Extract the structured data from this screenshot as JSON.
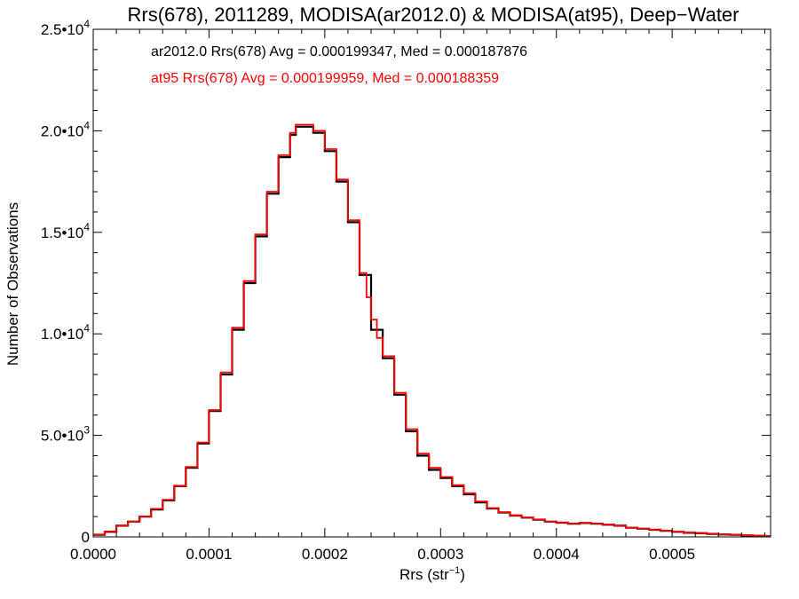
{
  "chart_data": {
    "type": "line",
    "title": "Rrs(678), 2011289, MODISA(ar2012.0) & MODISA(at95), Deep−Water",
    "xlabel": "Rrs (str",
    "xlabel_sup": "−1",
    "xlabel_end": ")",
    "ylabel": "Number of Observations",
    "xlim": [
      0.0,
      0.000585
    ],
    "ylim": [
      0,
      25000
    ],
    "x_ticks": [
      {
        "value": 0.0,
        "label": "0.0000"
      },
      {
        "value": 0.0001,
        "label": "0.0001"
      },
      {
        "value": 0.0002,
        "label": "0.0002"
      },
      {
        "value": 0.0003,
        "label": "0.0003"
      },
      {
        "value": 0.0004,
        "label": "0.0004"
      },
      {
        "value": 0.0005,
        "label": "0.0005"
      }
    ],
    "y_ticks": [
      {
        "value": 0,
        "mant": "0",
        "exp": ""
      },
      {
        "value": 5000,
        "mant": "5.0•10",
        "exp": "3"
      },
      {
        "value": 10000,
        "mant": "1.0•10",
        "exp": "4"
      },
      {
        "value": 15000,
        "mant": "1.5•10",
        "exp": "4"
      },
      {
        "value": 20000,
        "mant": "2.0•10",
        "exp": "4"
      },
      {
        "value": 25000,
        "mant": "2.5•10",
        "exp": "4"
      }
    ],
    "grid": false,
    "annotations": [
      {
        "text": "ar2012.0 Rrs(678) Avg = 0.000199347, Med = 0.000187876",
        "color": "#000000"
      },
      {
        "text": "at95 Rrs(678) Avg = 0.000199959, Med = 0.000188359",
        "color": "#ff0000"
      }
    ],
    "series": [
      {
        "color": "#000000",
        "points": [
          [
            0.0,
            100
          ],
          [
            1e-05,
            250
          ],
          [
            2e-05,
            550
          ],
          [
            3e-05,
            750
          ],
          [
            4e-05,
            1000
          ],
          [
            5e-05,
            1350
          ],
          [
            6e-05,
            1800
          ],
          [
            7e-05,
            2500
          ],
          [
            8e-05,
            3400
          ],
          [
            9e-05,
            4600
          ],
          [
            0.0001,
            6200
          ],
          [
            0.00011,
            8000
          ],
          [
            0.00012,
            10200
          ],
          [
            0.00013,
            12500
          ],
          [
            0.00014,
            14800
          ],
          [
            0.00015,
            16900
          ],
          [
            0.00016,
            18700
          ],
          [
            0.00017,
            19800
          ],
          [
            0.000175,
            20200
          ],
          [
            0.00018,
            20200
          ],
          [
            0.00019,
            19900
          ],
          [
            0.0002,
            19000
          ],
          [
            0.00021,
            17500
          ],
          [
            0.00022,
            15500
          ],
          [
            0.00023,
            12900
          ],
          [
            0.00024,
            10200
          ],
          [
            0.00025,
            8800
          ],
          [
            0.00026,
            7000
          ],
          [
            0.00027,
            5200
          ],
          [
            0.00028,
            4000
          ],
          [
            0.00029,
            3300
          ],
          [
            0.0003,
            2900
          ],
          [
            0.00031,
            2500
          ],
          [
            0.00032,
            2100
          ],
          [
            0.00033,
            1700
          ],
          [
            0.00034,
            1400
          ],
          [
            0.00035,
            1200
          ],
          [
            0.00036,
            1050
          ],
          [
            0.00037,
            950
          ],
          [
            0.00038,
            850
          ],
          [
            0.00039,
            750
          ],
          [
            0.0004,
            700
          ],
          [
            0.00041,
            650
          ],
          [
            0.00042,
            680
          ],
          [
            0.00043,
            650
          ],
          [
            0.00044,
            600
          ],
          [
            0.00045,
            550
          ],
          [
            0.00046,
            450
          ],
          [
            0.00047,
            400
          ],
          [
            0.00048,
            350
          ],
          [
            0.00049,
            300
          ],
          [
            0.0005,
            250
          ],
          [
            0.00051,
            200
          ],
          [
            0.00052,
            180
          ],
          [
            0.00053,
            150
          ],
          [
            0.00054,
            120
          ],
          [
            0.00055,
            100
          ],
          [
            0.00056,
            70
          ],
          [
            0.00057,
            50
          ],
          [
            0.00058,
            40
          ]
        ]
      },
      {
        "color": "#ff0000",
        "points": [
          [
            0.0,
            120
          ],
          [
            1e-05,
            270
          ],
          [
            2e-05,
            560
          ],
          [
            3e-05,
            760
          ],
          [
            4e-05,
            1010
          ],
          [
            5e-05,
            1380
          ],
          [
            6e-05,
            1830
          ],
          [
            7e-05,
            2520
          ],
          [
            8e-05,
            3450
          ],
          [
            9e-05,
            4650
          ],
          [
            0.0001,
            6250
          ],
          [
            0.00011,
            8100
          ],
          [
            0.00012,
            10300
          ],
          [
            0.00013,
            12600
          ],
          [
            0.00014,
            14900
          ],
          [
            0.00015,
            17000
          ],
          [
            0.00016,
            18800
          ],
          [
            0.00017,
            19900
          ],
          [
            0.000175,
            20300
          ],
          [
            0.00018,
            20300
          ],
          [
            0.00019,
            20000
          ],
          [
            0.0002,
            19100
          ],
          [
            0.00021,
            17600
          ],
          [
            0.00022,
            15600
          ],
          [
            0.00023,
            13000
          ],
          [
            0.000236,
            11800
          ],
          [
            0.00024,
            10700
          ],
          [
            0.000245,
            9800
          ],
          [
            0.00025,
            8900
          ],
          [
            0.00026,
            7100
          ],
          [
            0.00027,
            5300
          ],
          [
            0.00028,
            4100
          ],
          [
            0.00029,
            3400
          ],
          [
            0.0003,
            2950
          ],
          [
            0.00031,
            2550
          ],
          [
            0.00032,
            2150
          ],
          [
            0.00033,
            1750
          ],
          [
            0.00034,
            1420
          ],
          [
            0.00035,
            1220
          ],
          [
            0.00036,
            1060
          ],
          [
            0.00037,
            960
          ],
          [
            0.00038,
            860
          ],
          [
            0.00039,
            760
          ],
          [
            0.0004,
            710
          ],
          [
            0.00041,
            660
          ],
          [
            0.00042,
            690
          ],
          [
            0.00043,
            660
          ],
          [
            0.00044,
            610
          ],
          [
            0.00045,
            560
          ],
          [
            0.00046,
            460
          ],
          [
            0.00047,
            410
          ],
          [
            0.00048,
            360
          ],
          [
            0.00049,
            310
          ],
          [
            0.0005,
            260
          ],
          [
            0.00051,
            210
          ],
          [
            0.00052,
            190
          ],
          [
            0.00053,
            160
          ],
          [
            0.00054,
            130
          ],
          [
            0.00055,
            110
          ],
          [
            0.00056,
            80
          ],
          [
            0.00057,
            60
          ],
          [
            0.00058,
            45
          ]
        ]
      }
    ]
  }
}
